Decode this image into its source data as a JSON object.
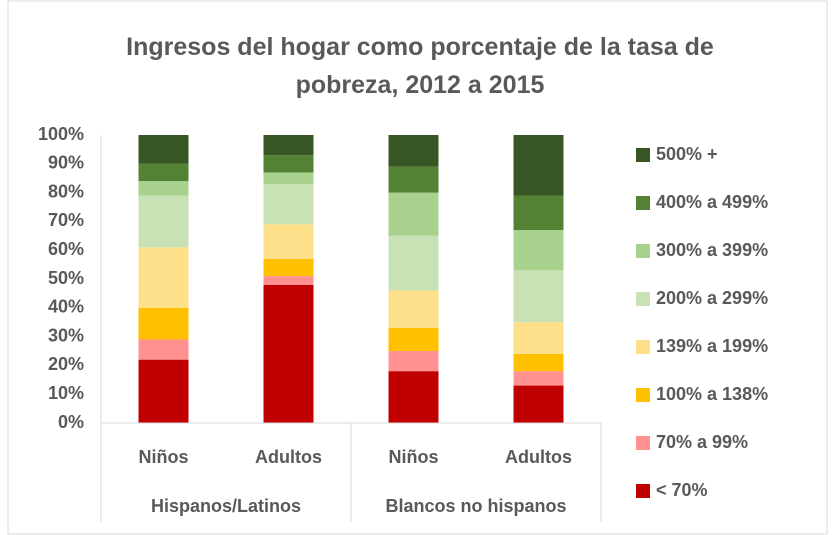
{
  "chart_data": {
    "type": "stacked_bar",
    "title": "Ingresos del hogar como porcentaje de la tasa de pobreza, 2012 a 2015",
    "categories": [
      "Niños",
      "Adultos",
      "Niños",
      "Adultos"
    ],
    "groups": [
      "Hispanos/Latinos",
      "Blancos no hispanos"
    ],
    "series": [
      {
        "name": "< 70%",
        "color": "#c00000",
        "values": [
          22,
          48,
          18,
          13
        ]
      },
      {
        "name": "70% a 99%",
        "color": "#ff9191",
        "values": [
          7,
          3,
          7,
          5
        ]
      },
      {
        "name": "100% a 138%",
        "color": "#ffc000",
        "values": [
          11,
          6,
          8,
          6
        ]
      },
      {
        "name": "139% a 199%",
        "color": "#ffe08a",
        "values": [
          21,
          12,
          13,
          11
        ]
      },
      {
        "name": "200% a 299%",
        "color": "#c9e2b5",
        "values": [
          18,
          14,
          19,
          18
        ]
      },
      {
        "name": "300% a 399%",
        "color": "#a9d18e",
        "values": [
          5,
          4,
          15,
          14
        ]
      },
      {
        "name": "400% a 499%",
        "color": "#548235",
        "values": [
          6,
          6,
          9,
          12
        ]
      },
      {
        "name": "500% +",
        "color": "#375623",
        "values": [
          10,
          7,
          11,
          21
        ]
      }
    ],
    "ylim": [
      0,
      100
    ],
    "yticks": [
      {
        "value": 0,
        "label": "0%"
      },
      {
        "value": 10,
        "label": "10%"
      },
      {
        "value": 20,
        "label": "20%"
      },
      {
        "value": 30,
        "label": "30%"
      },
      {
        "value": 40,
        "label": "40%"
      },
      {
        "value": 50,
        "label": "50%"
      },
      {
        "value": 60,
        "label": "60%"
      },
      {
        "value": 70,
        "label": "70%"
      },
      {
        "value": 80,
        "label": "80%"
      },
      {
        "value": 90,
        "label": "90%"
      },
      {
        "value": 100,
        "label": "100%"
      }
    ],
    "grid": false,
    "legend": "right"
  }
}
